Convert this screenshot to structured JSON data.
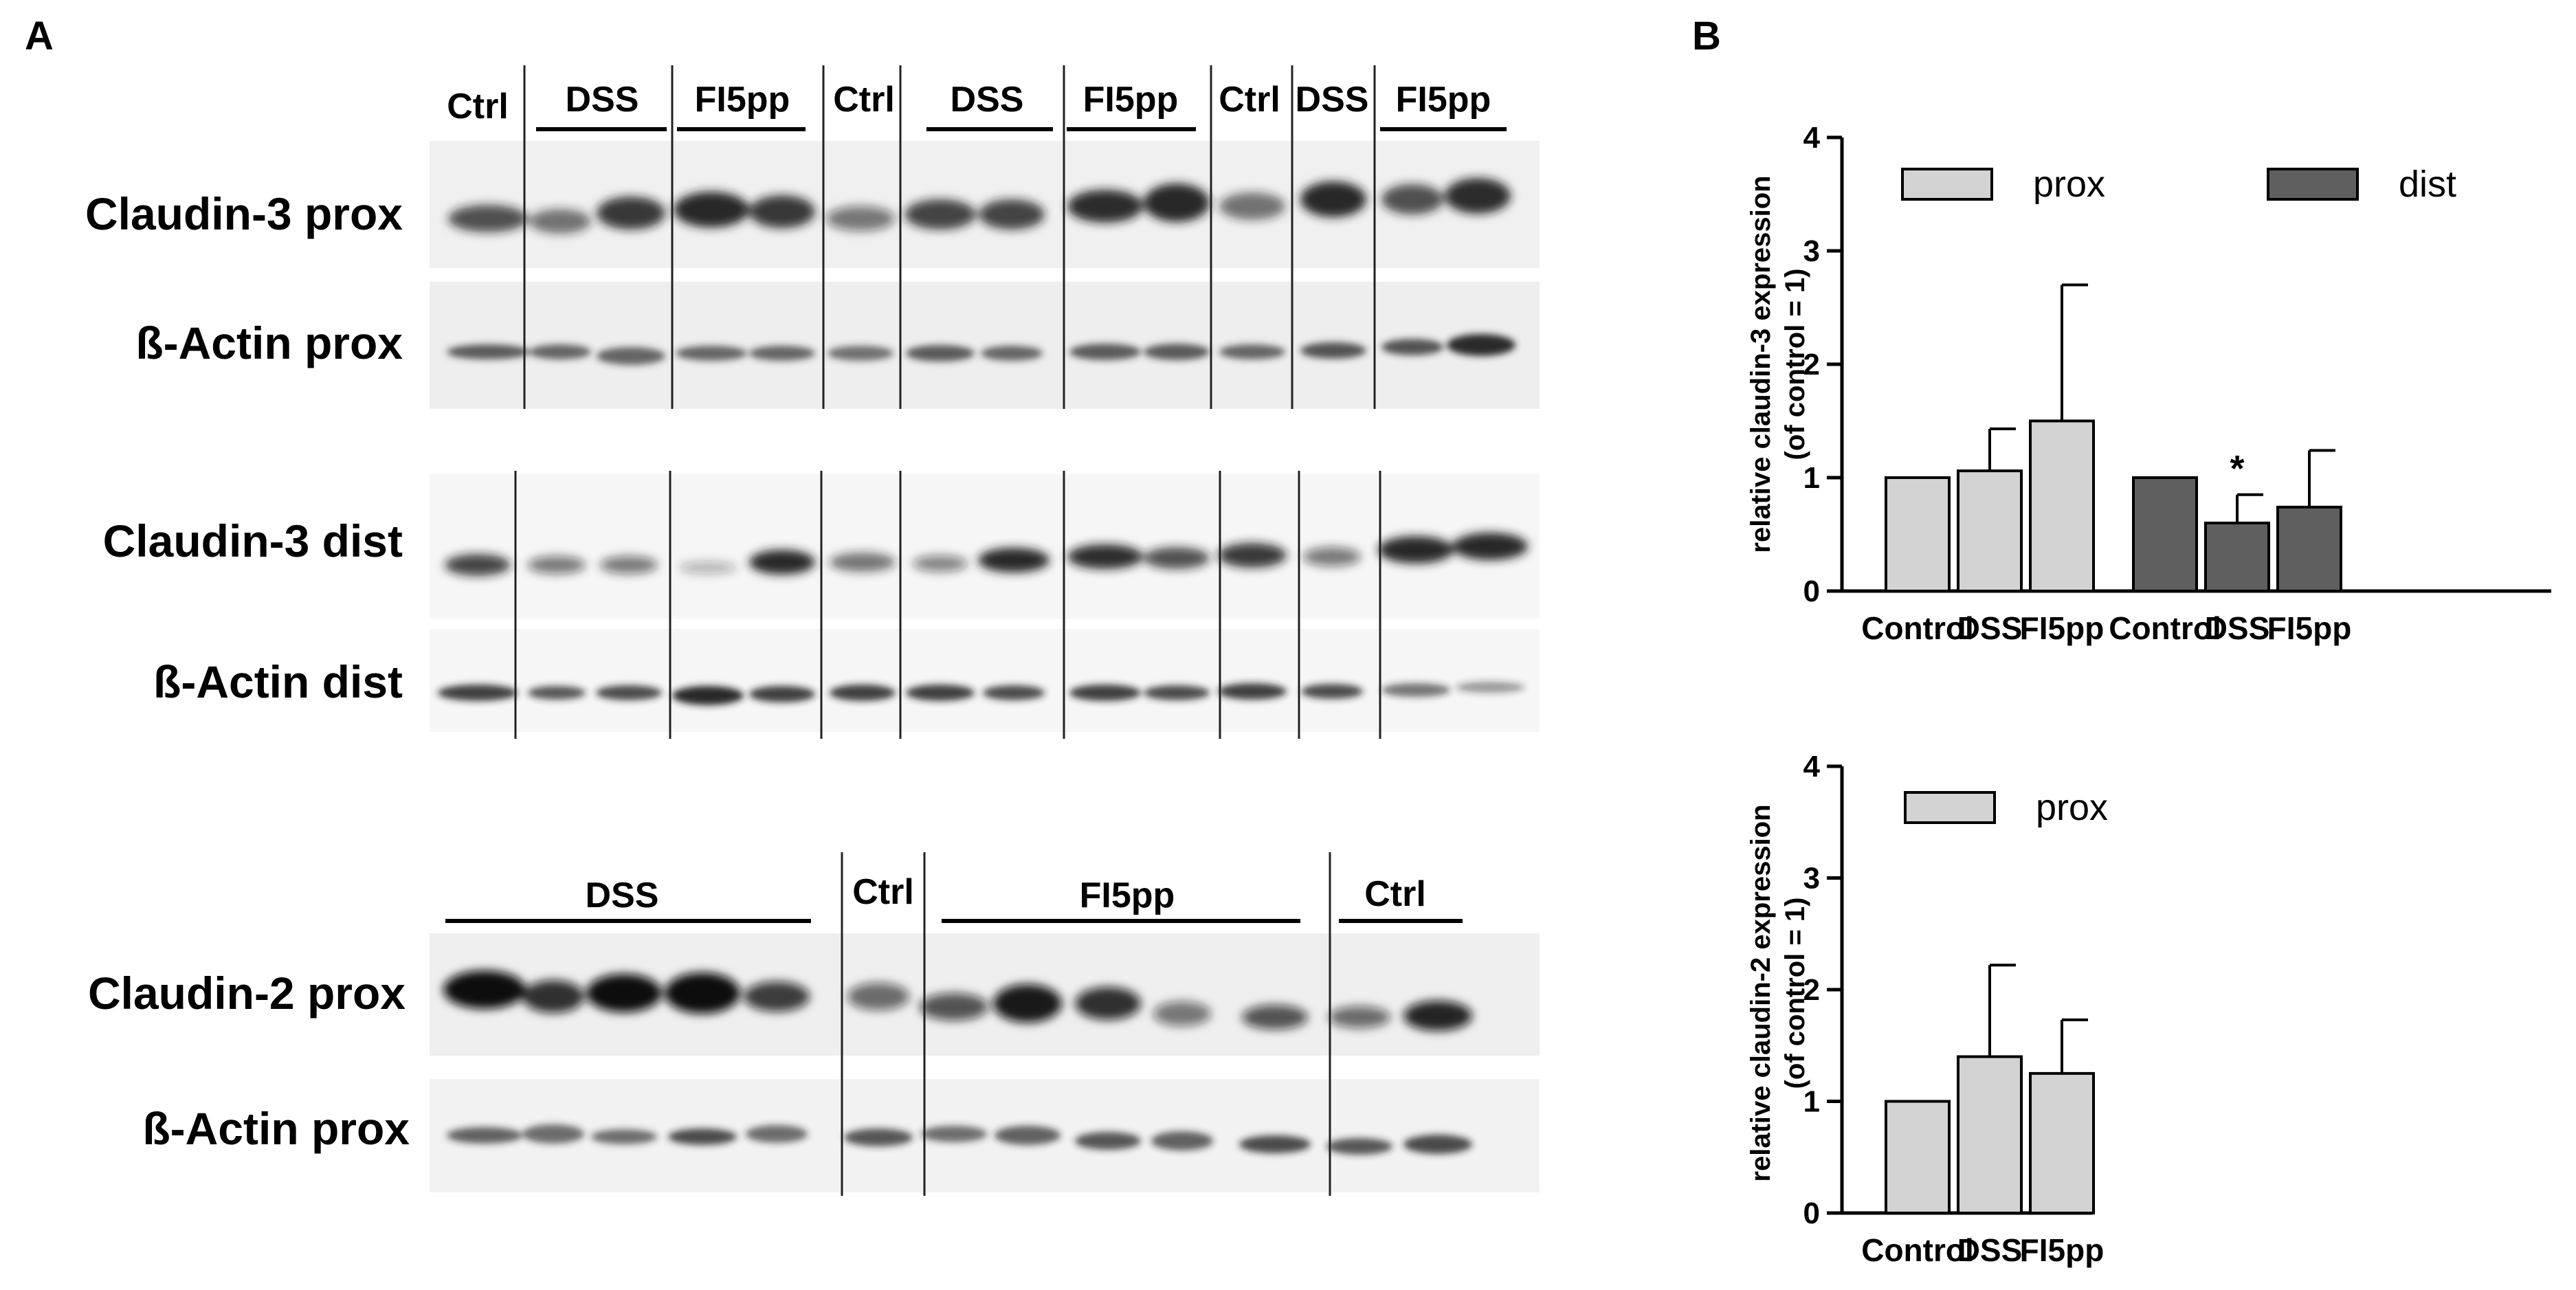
{
  "panels": {
    "a": "A",
    "b": "B"
  },
  "blots": [
    {
      "lane_groups": [
        "Ctrl",
        "DSS",
        "FI5pp",
        "Ctrl",
        "DSS",
        "FI5pp",
        "Ctrl",
        "DSS",
        "FI5pp"
      ],
      "rows": [
        "Claudin-3 prox",
        "ß-Actin prox"
      ]
    },
    {
      "rows": [
        "Claudin-3 dist",
        "ß-Actin dist"
      ]
    },
    {
      "lane_groups": [
        "DSS",
        "Ctrl",
        "FI5pp",
        "Ctrl"
      ],
      "rows": [
        "Claudin-2 prox",
        "ß-Actin prox"
      ]
    }
  ],
  "colors": {
    "prox": "#d3d3d3",
    "dist": "#5f5f5f",
    "axis": "#000000"
  },
  "chart_data": [
    {
      "type": "bar",
      "ylabel": [
        "relative claudin-3 expression",
        "(of control = 1)"
      ],
      "ylim": [
        0,
        4
      ],
      "yticks": [
        "0",
        "1",
        "2",
        "3",
        "4"
      ],
      "series": [
        {
          "name": "prox",
          "categories": [
            "Control",
            "DSS",
            "FI5pp"
          ],
          "values": [
            1.0,
            1.06,
            1.5
          ],
          "errors": [
            0,
            0.37,
            1.2
          ]
        },
        {
          "name": "dist",
          "categories": [
            "Control",
            "DSS",
            "FI5pp"
          ],
          "values": [
            1.0,
            0.6,
            0.74
          ],
          "errors": [
            0,
            0.25,
            0.5
          ]
        }
      ],
      "annotations": [
        {
          "series": "dist",
          "category": "DSS",
          "text": "*"
        }
      ],
      "legend": "top"
    },
    {
      "type": "bar",
      "ylabel": [
        "relative claudin-2 expression",
        "(of control = 1)"
      ],
      "ylim": [
        0,
        4
      ],
      "yticks": [
        "0",
        "1",
        "2",
        "3",
        "4"
      ],
      "series": [
        {
          "name": "prox",
          "categories": [
            "Control",
            "DSS",
            "FI5pp"
          ],
          "values": [
            1.0,
            1.4,
            1.25
          ],
          "errors": [
            0,
            0.82,
            0.48
          ]
        }
      ],
      "legend": "top"
    }
  ]
}
